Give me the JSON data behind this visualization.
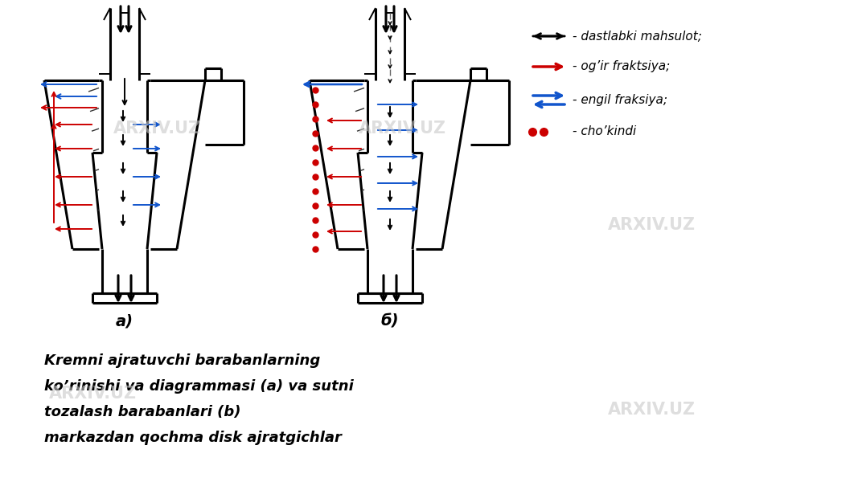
{
  "bg_color": "#ffffff",
  "fig_width": 10.67,
  "fig_height": 6.0,
  "dpi": 100,
  "caption_lines": [
    "Kremni ajratuvchi barabanlarning",
    "ko’rinishi va diagrammasi (a) va sutni",
    "tozalash barabanlari (b)",
    "markazdan qochma disk ajratgichlar"
  ],
  "label_a": "a)",
  "label_b": "б)",
  "legend": [
    {
      "text": "- dastlabki mahsulot;",
      "color": "#000000",
      "type": "double_arrow"
    },
    {
      "text": "- og’ir fraktsiya;",
      "color": "#cc0000",
      "type": "arrow"
    },
    {
      "text": "- engil fraksiya;",
      "color": "#1155cc",
      "type": "double_arrow_blue"
    },
    {
      "text": "- cho’kindi",
      "color": "#cc0000",
      "type": "dots"
    }
  ],
  "black": "#000000",
  "red": "#cc0000",
  "blue": "#1155cc",
  "gray_wm": "#c8c8c8",
  "lw_main": 2.2,
  "lw_thin": 1.4
}
